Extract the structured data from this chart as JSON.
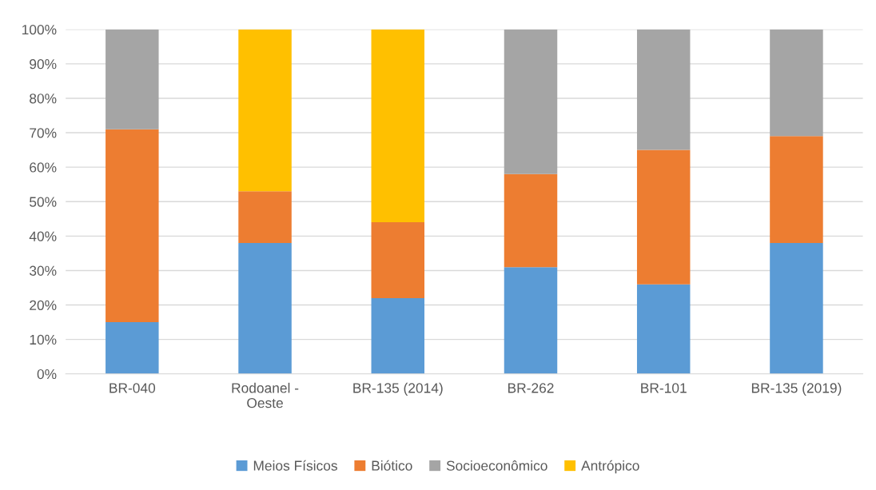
{
  "chart_data": {
    "type": "bar",
    "stacked": true,
    "categories": [
      "BR-040",
      "Rodoanel -\nOeste",
      "BR-135 (2014)",
      "BR-262",
      "BR-101",
      "BR-135 (2019)"
    ],
    "series": [
      {
        "name": "Meios Físicos",
        "color": "#5b9bd5",
        "values": [
          15,
          38,
          22,
          31,
          26,
          38
        ]
      },
      {
        "name": "Biótico",
        "color": "#ed7d31",
        "values": [
          56,
          15,
          22,
          27,
          39,
          31
        ]
      },
      {
        "name": "Socioeconômico",
        "color": "#a5a5a5",
        "values": [
          29,
          null,
          null,
          42,
          35,
          31
        ]
      },
      {
        "name": "Antrópico",
        "color": "#ffc000",
        "values": [
          null,
          47,
          56,
          null,
          null,
          null
        ]
      }
    ],
    "ylim": [
      0,
      100
    ],
    "yticks": [
      {
        "value": 0,
        "label": "0%"
      },
      {
        "value": 10,
        "label": "10%"
      },
      {
        "value": 20,
        "label": "20%"
      },
      {
        "value": 30,
        "label": "30%"
      },
      {
        "value": 40,
        "label": "40%"
      },
      {
        "value": 50,
        "label": "50%"
      },
      {
        "value": 60,
        "label": "60%"
      },
      {
        "value": 70,
        "label": "70%"
      },
      {
        "value": 80,
        "label": "80%"
      },
      {
        "value": 90,
        "label": "90%"
      },
      {
        "value": 100,
        "label": "100%"
      }
    ],
    "grid": "y",
    "legend": "bottom"
  }
}
